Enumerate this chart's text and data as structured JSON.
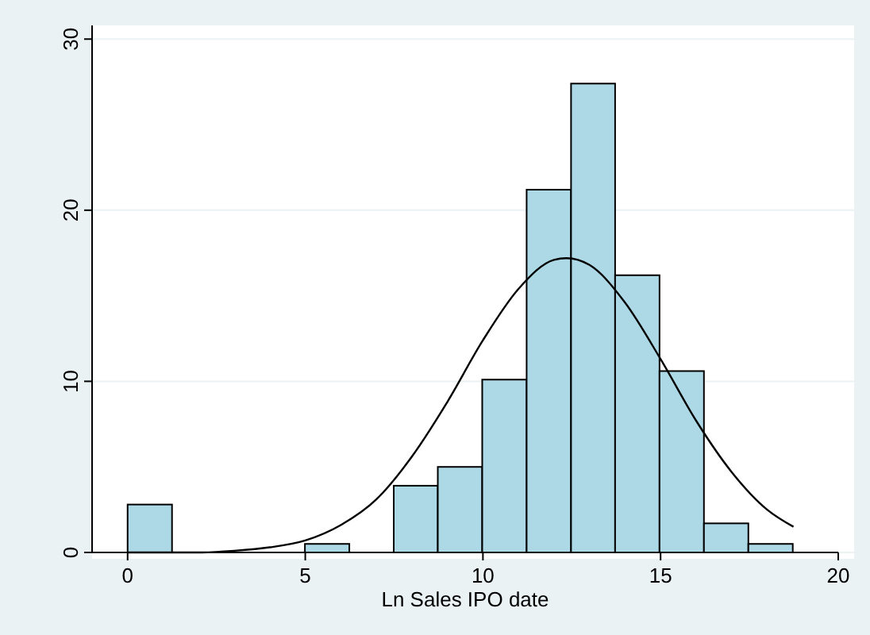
{
  "chart_data": {
    "type": "histogram",
    "xlabel": "Ln Sales IPO date",
    "xlim": [
      -1,
      20
    ],
    "xticks": [
      0,
      5,
      10,
      15,
      20
    ],
    "ylim": [
      0,
      30.8
    ],
    "yticks": [
      0,
      10,
      20,
      30
    ],
    "grid": "y",
    "series": [
      {
        "color": "#add8e6",
        "bins": [
          0,
          1.25,
          2.5,
          3.74,
          4.99,
          6.24,
          7.49,
          8.73,
          9.98,
          11.23,
          12.48,
          13.72,
          14.97,
          16.22,
          17.47,
          18.72
        ],
        "values": [
          2.8,
          0,
          0,
          0,
          0.5,
          0,
          3.9,
          5.0,
          10.1,
          21.2,
          27.4,
          16.2,
          10.6,
          1.7,
          0.5
        ]
      },
      {
        "type": "line",
        "color": "#000000",
        "x": [
          0,
          1,
          2,
          3,
          4,
          5,
          6,
          7,
          8,
          9,
          10,
          11,
          12,
          12.35,
          13,
          14,
          15,
          16,
          17,
          18,
          18.74
        ],
        "values": [
          0,
          0,
          0,
          0.1,
          0.3,
          0.7,
          1.6,
          3.1,
          5.6,
          8.8,
          12.4,
          15.4,
          17.1,
          17.2,
          16.8,
          14.6,
          11.3,
          7.7,
          4.7,
          2.5,
          1.5
        ]
      }
    ]
  }
}
